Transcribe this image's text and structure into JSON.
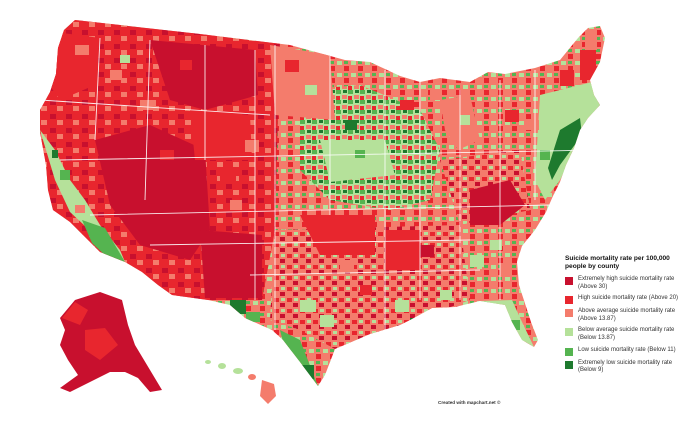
{
  "legend": {
    "title": "Suicide mortality rate per 100,000 people by county",
    "items": [
      {
        "label": "Extremely high suicide mortality rate (Above 30)",
        "color": "#c8102e"
      },
      {
        "label": "High suicide mortality rate (Above 20)",
        "color": "#e8262e"
      },
      {
        "label": "Above average suicide mortality rate (Above 13.87)",
        "color": "#f47c6c"
      },
      {
        "label": "Below average suicide mortality rate (Below 13.87)",
        "color": "#b5e19a"
      },
      {
        "label": "Low suicide mortality rate (Below 11)",
        "color": "#55b450"
      },
      {
        "label": "Extremely low suicide mortality rate (Below 9)",
        "color": "#1e7a2e"
      }
    ]
  },
  "credit": "Created with mapchart.net ©",
  "colors": {
    "border": "#ffffff",
    "background": "#ffffff"
  }
}
